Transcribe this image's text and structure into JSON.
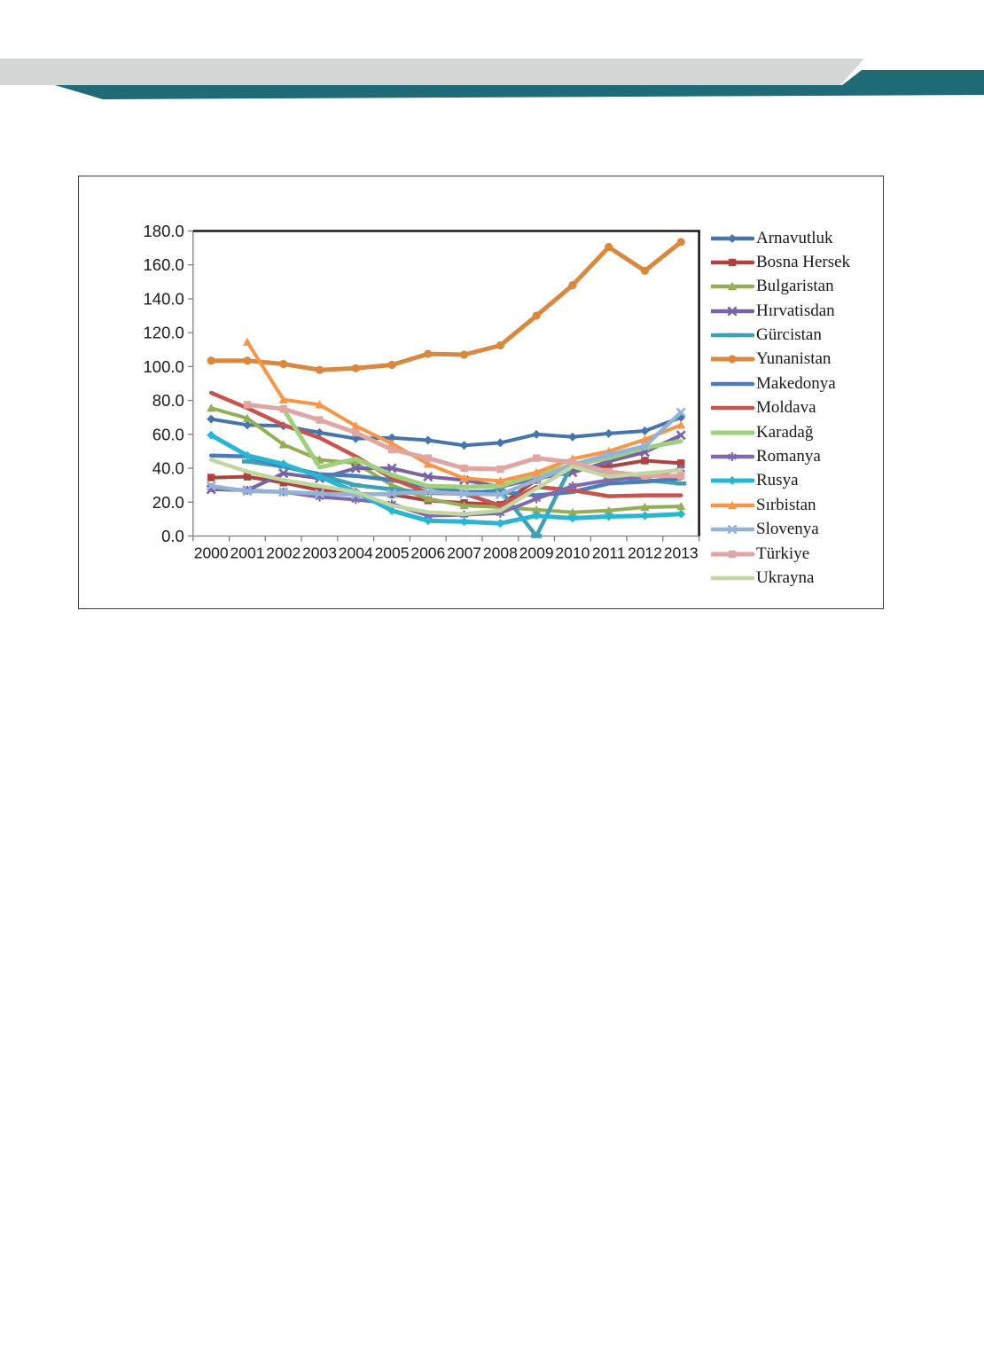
{
  "page": {
    "background": "#ffffff"
  },
  "banner": {
    "gray_color": "#d3d8d7",
    "teal_color": "#1f6b77"
  },
  "figure": {
    "border_color": "#3c3c3c",
    "plot_border_color": "#1a1a1a",
    "axis_color": "#7f7f7f",
    "tick_label_color": "#1a1a1a"
  },
  "chart_data": {
    "type": "line",
    "title": "",
    "xlabel": "",
    "ylabel": "",
    "x_ticks": [
      "2000",
      "2001",
      "2002",
      "2003",
      "2004",
      "2005",
      "2006",
      "2007",
      "2008",
      "2009",
      "2010",
      "2011",
      "2012",
      "2013"
    ],
    "y_ticks": [
      "0.0",
      "20.0",
      "40.0",
      "60.0",
      "80.0",
      "100.0",
      "120.0",
      "140.0",
      "160.0",
      "180.0"
    ],
    "ylim": [
      0,
      180
    ],
    "ytick_step": 20,
    "grid": false,
    "legend_position": "right",
    "series": [
      {
        "name": "Arnavutluk",
        "color": "#4674ab",
        "marker": "diamond",
        "width": 4,
        "values": [
          69,
          65.5,
          65,
          61,
          57.5,
          58,
          56.5,
          53.5,
          55,
          60,
          58.5,
          60.5,
          62,
          70
        ]
      },
      {
        "name": "Bosna Hersek",
        "color": "#ab4441",
        "marker": "square",
        "width": 4,
        "values": [
          34.5,
          35,
          31.5,
          27,
          25,
          24.5,
          21,
          19.5,
          18.5,
          33,
          40,
          41,
          44.5,
          43
        ]
      },
      {
        "name": "Bulgaristan",
        "color": "#94ae58",
        "marker": "triangle",
        "width": 4,
        "values": [
          75.5,
          69.5,
          54,
          45,
          43,
          30,
          22,
          18,
          17,
          15.5,
          14,
          15,
          17,
          17.5
        ]
      },
      {
        "name": "Hırvatisdan",
        "color": "#7763a5",
        "marker": "x",
        "width": 4,
        "values": [
          27.5,
          27,
          37,
          34,
          40,
          40,
          35,
          33,
          29,
          34,
          37.5,
          44,
          49.5,
          59.5
        ]
      },
      {
        "name": "Gürcistan",
        "color": "#3fa0b4",
        "marker": "dash",
        "width": 4.5,
        "values": [
          null,
          44,
          41,
          36,
          30,
          27.5,
          25.5,
          25,
          27,
          0,
          43,
          35,
          33,
          31
        ]
      },
      {
        "name": "Yunanistan",
        "color": "#d9883d",
        "marker": "circle",
        "width": 5,
        "values": [
          103.5,
          103.5,
          101.5,
          98,
          99,
          101,
          107.5,
          107,
          112.5,
          130,
          148,
          170.5,
          156.5,
          173.5
        ]
      },
      {
        "name": "Makedonya",
        "color": "#4a7ebb",
        "marker": "none",
        "width": 4.5,
        "values": [
          47.5,
          47,
          41,
          36.5,
          35.5,
          33,
          29,
          26,
          26,
          24,
          26,
          31,
          32,
          34
        ]
      },
      {
        "name": "Moldava",
        "color": "#c9534f",
        "marker": "none",
        "width": 4.5,
        "values": [
          84.5,
          75.5,
          65.5,
          58,
          47,
          34,
          25.5,
          25,
          18,
          29,
          27,
          23.5,
          24,
          24
        ]
      },
      {
        "name": "Karadağ",
        "color": "#9fd07e",
        "marker": "none",
        "width": 5,
        "values": [
          null,
          null,
          75,
          40.5,
          45.5,
          36,
          29.5,
          29,
          29.5,
          36,
          42,
          46,
          52,
          56
        ]
      },
      {
        "name": "Romanya",
        "color": "#8169b0",
        "marker": "star",
        "width": 4,
        "values": [
          28.5,
          27,
          26,
          23,
          21.5,
          19,
          12,
          12.5,
          13.5,
          22,
          29.5,
          33,
          35,
          39.5
        ]
      },
      {
        "name": "Rusya",
        "color": "#29b5d4",
        "marker": "diamond",
        "width": 5,
        "values": [
          59.5,
          47.5,
          42.5,
          35,
          26,
          15,
          9,
          8.5,
          7.5,
          12,
          10.5,
          11.5,
          12,
          13
        ]
      },
      {
        "name": "Sırbistan",
        "color": "#f79646",
        "marker": "triangle",
        "width": 4,
        "values": [
          null,
          114.5,
          80.5,
          77.5,
          65,
          54.5,
          42.5,
          34,
          32.5,
          37.5,
          45.5,
          50,
          57,
          65.5
        ]
      },
      {
        "name": "Slovenya",
        "color": "#95b3d7",
        "marker": "x",
        "width": 4.5,
        "values": [
          29.5,
          26.5,
          26,
          25,
          24.5,
          25,
          26,
          25,
          24.5,
          33,
          42,
          48,
          53,
          73
        ]
      },
      {
        "name": "Türkiye",
        "color": "#e0a6a3",
        "marker": "square",
        "width": 5,
        "values": [
          null,
          77.5,
          75,
          68.5,
          61,
          51,
          46,
          40,
          39.5,
          46,
          43.5,
          38,
          35.5,
          35.5
        ]
      },
      {
        "name": "Ukrayna",
        "color": "#c2d6a2",
        "marker": "none",
        "width": 4.5,
        "values": [
          45,
          38,
          33,
          29.5,
          26,
          18,
          14,
          13,
          15,
          28,
          41,
          35,
          37,
          39
        ]
      }
    ]
  }
}
